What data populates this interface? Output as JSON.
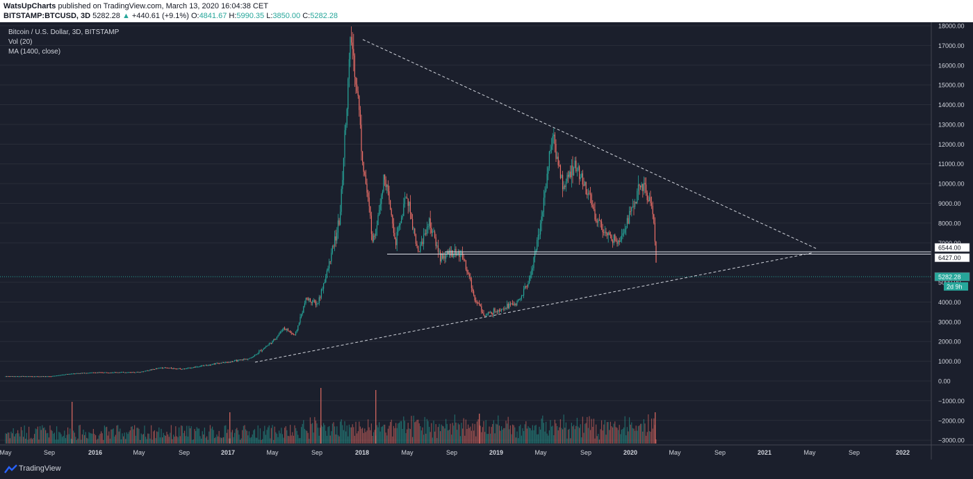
{
  "header": {
    "author": "WatsUpCharts",
    "published": "published on TradingView.com, March 13, 2020 16:04:38 CET",
    "symbol": "BITSTAMP:BTCUSD, 3D",
    "last": "5282.28",
    "change": "+440.61 (+9.1%)",
    "o_label": "O:",
    "o_value": "4841.67",
    "h_label": "H:",
    "h_value": "5990.35",
    "l_label": "L:",
    "l_value": "3850.00",
    "c_label": "C:",
    "c_value": "5282.28"
  },
  "legend": {
    "line1": "Bitcoin / U.S. Dollar, 3D, BITSTAMP",
    "line2": "Vol (20)",
    "line3": "MA (1400, close)"
  },
  "footer": {
    "brand": "TradingView"
  },
  "colors": {
    "background": "#1b1f2c",
    "up": "#26a69a",
    "down": "#ef7068",
    "grid": "#2a2e39",
    "axis_text": "#d1d4dc",
    "price_line": "#26a69a"
  },
  "chart_data": {
    "type": "candlestick",
    "title": "Bitcoin / U.S. Dollar, 3D, BITSTAMP",
    "ylim": [
      -3000,
      18000
    ],
    "y_ticks": [
      "18000.00",
      "17000.00",
      "16000.00",
      "15000.00",
      "14000.00",
      "13000.00",
      "12000.00",
      "11000.00",
      "10000.00",
      "9000.00",
      "8000.00",
      "7000.00",
      "5000.00",
      "4000.00",
      "3000.00",
      "2000.00",
      "1000.00",
      "0.00",
      "−1000.00",
      "−2000.00",
      "−3000.00"
    ],
    "x_ticks": [
      "May",
      "Sep",
      "2016",
      "May",
      "Sep",
      "2017",
      "May",
      "Sep",
      "2018",
      "May",
      "Sep",
      "2019",
      "May",
      "Sep",
      "2020",
      "May",
      "Sep",
      "2021",
      "May",
      "Sep",
      "2022"
    ],
    "price_series": [
      [
        "2015-05",
        240
      ],
      [
        "2015-09",
        235
      ],
      [
        "2015-11",
        380
      ],
      [
        "2016-01",
        430
      ],
      [
        "2016-05",
        450
      ],
      [
        "2016-07",
        680
      ],
      [
        "2016-09",
        610
      ],
      [
        "2016-12",
        900
      ],
      [
        "2017-01",
        950
      ],
      [
        "2017-03",
        1150
      ],
      [
        "2017-05",
        2000
      ],
      [
        "2017-06",
        2700
      ],
      [
        "2017-07",
        2300
      ],
      [
        "2017-08",
        4200
      ],
      [
        "2017-09",
        3900
      ],
      [
        "2017-10",
        5800
      ],
      [
        "2017-11",
        8200
      ],
      [
        "2017-12",
        17500
      ],
      [
        "2017-12-20",
        14500
      ],
      [
        "2018-01",
        11500
      ],
      [
        "2018-02",
        7000
      ],
      [
        "2018-03",
        10500
      ],
      [
        "2018-04",
        7000
      ],
      [
        "2018-05",
        9500
      ],
      [
        "2018-06",
        6500
      ],
      [
        "2018-07",
        8100
      ],
      [
        "2018-08",
        6300
      ],
      [
        "2018-09",
        6500
      ],
      [
        "2018-10",
        6400
      ],
      [
        "2018-11",
        4300
      ],
      [
        "2018-12",
        3300
      ],
      [
        "2019-01",
        3600
      ],
      [
        "2019-02",
        3800
      ],
      [
        "2019-03",
        4000
      ],
      [
        "2019-04",
        5200
      ],
      [
        "2019-05",
        8000
      ],
      [
        "2019-06",
        12500
      ],
      [
        "2019-07",
        9800
      ],
      [
        "2019-08",
        11000
      ],
      [
        "2019-09",
        9800
      ],
      [
        "2019-10",
        8200
      ],
      [
        "2019-11",
        7300
      ],
      [
        "2019-12",
        7200
      ],
      [
        "2020-01",
        8500
      ],
      [
        "2020-02",
        10000
      ],
      [
        "2020-03-01",
        8800
      ],
      [
        "2020-03-13",
        5282.28
      ]
    ],
    "annotations": {
      "resistance_high": 6544.0,
      "resistance_low": 6427.0,
      "current_price": "5282.28",
      "countdown": "2d 9h",
      "label_6544": "6544.00",
      "label_6427": "6427.00"
    }
  }
}
